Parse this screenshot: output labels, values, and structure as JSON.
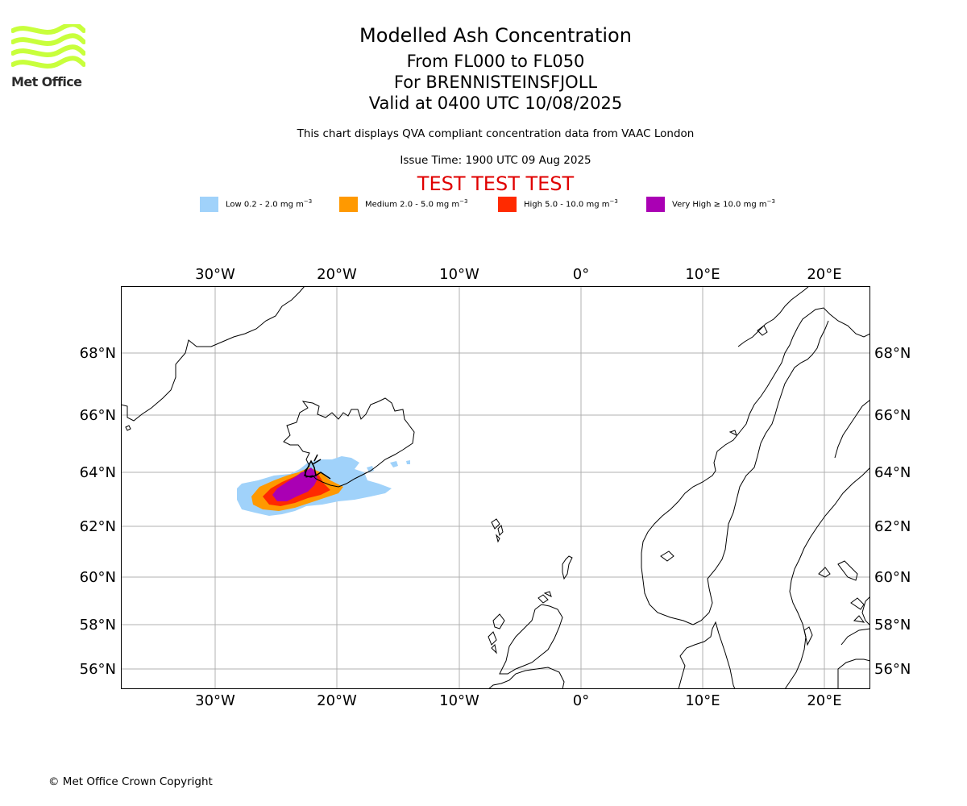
{
  "logo": {
    "text": "Met Office",
    "color": "#c8ff3c"
  },
  "header": {
    "title": "Modelled Ash Concentration",
    "levels": "From FL000 to FL050",
    "volcano": "For BRENNISTEINSFJOLL",
    "valid": "Valid at 0400 UTC 10/08/2025",
    "subtitle": "This chart displays QVA compliant concentration data from VAAC London",
    "issue_time": "Issue Time: 1900 UTC 09 Aug 2025",
    "test_banner": "TEST TEST TEST"
  },
  "legend": [
    {
      "label": "Low 0.2 - 2.0 mg m",
      "unit_exp": "−3",
      "color": "#a0d2fa"
    },
    {
      "label": "Medium 2.0 - 5.0 mg m",
      "unit_exp": "−3",
      "color": "#ff9900"
    },
    {
      "label": "High 5.0 - 10.0 mg m",
      "unit_exp": "−3",
      "color": "#ff2a00"
    },
    {
      "label": "Very High  ≥  10.0 mg m",
      "unit_exp": "−3",
      "color": "#aa00b4"
    }
  ],
  "map": {
    "lon_ticks": [
      "30°W",
      "20°W",
      "10°W",
      "0°",
      "10°E",
      "20°E"
    ],
    "lat_ticks": [
      "68°N",
      "66°N",
      "64°N",
      "62°N",
      "60°N",
      "58°N",
      "56°N"
    ],
    "gridlines": true
  },
  "footer": {
    "copyright": "© Met Office Crown Copyright"
  }
}
